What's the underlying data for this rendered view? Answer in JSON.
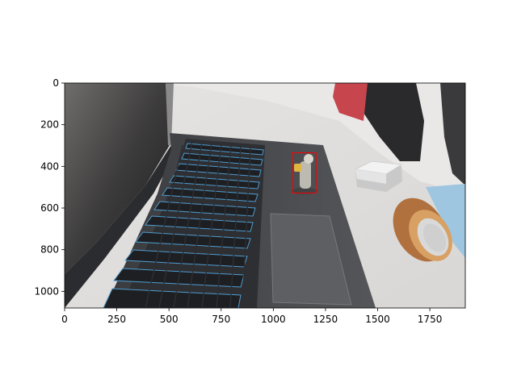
{
  "figure": {
    "image_description_icon": "laptop-photo",
    "x_ticks": [
      "0",
      "250",
      "500",
      "750",
      "1000",
      "1250",
      "1500",
      "1750"
    ],
    "y_ticks": [
      "0",
      "200",
      "400",
      "600",
      "800",
      "1000"
    ],
    "x_range": [
      0,
      1920
    ],
    "y_range": [
      1080,
      0
    ],
    "bbox_color": "#ff0000",
    "bbox_data": {
      "x0": 1090,
      "y0": 335,
      "x1": 1205,
      "y1": 528
    }
  }
}
